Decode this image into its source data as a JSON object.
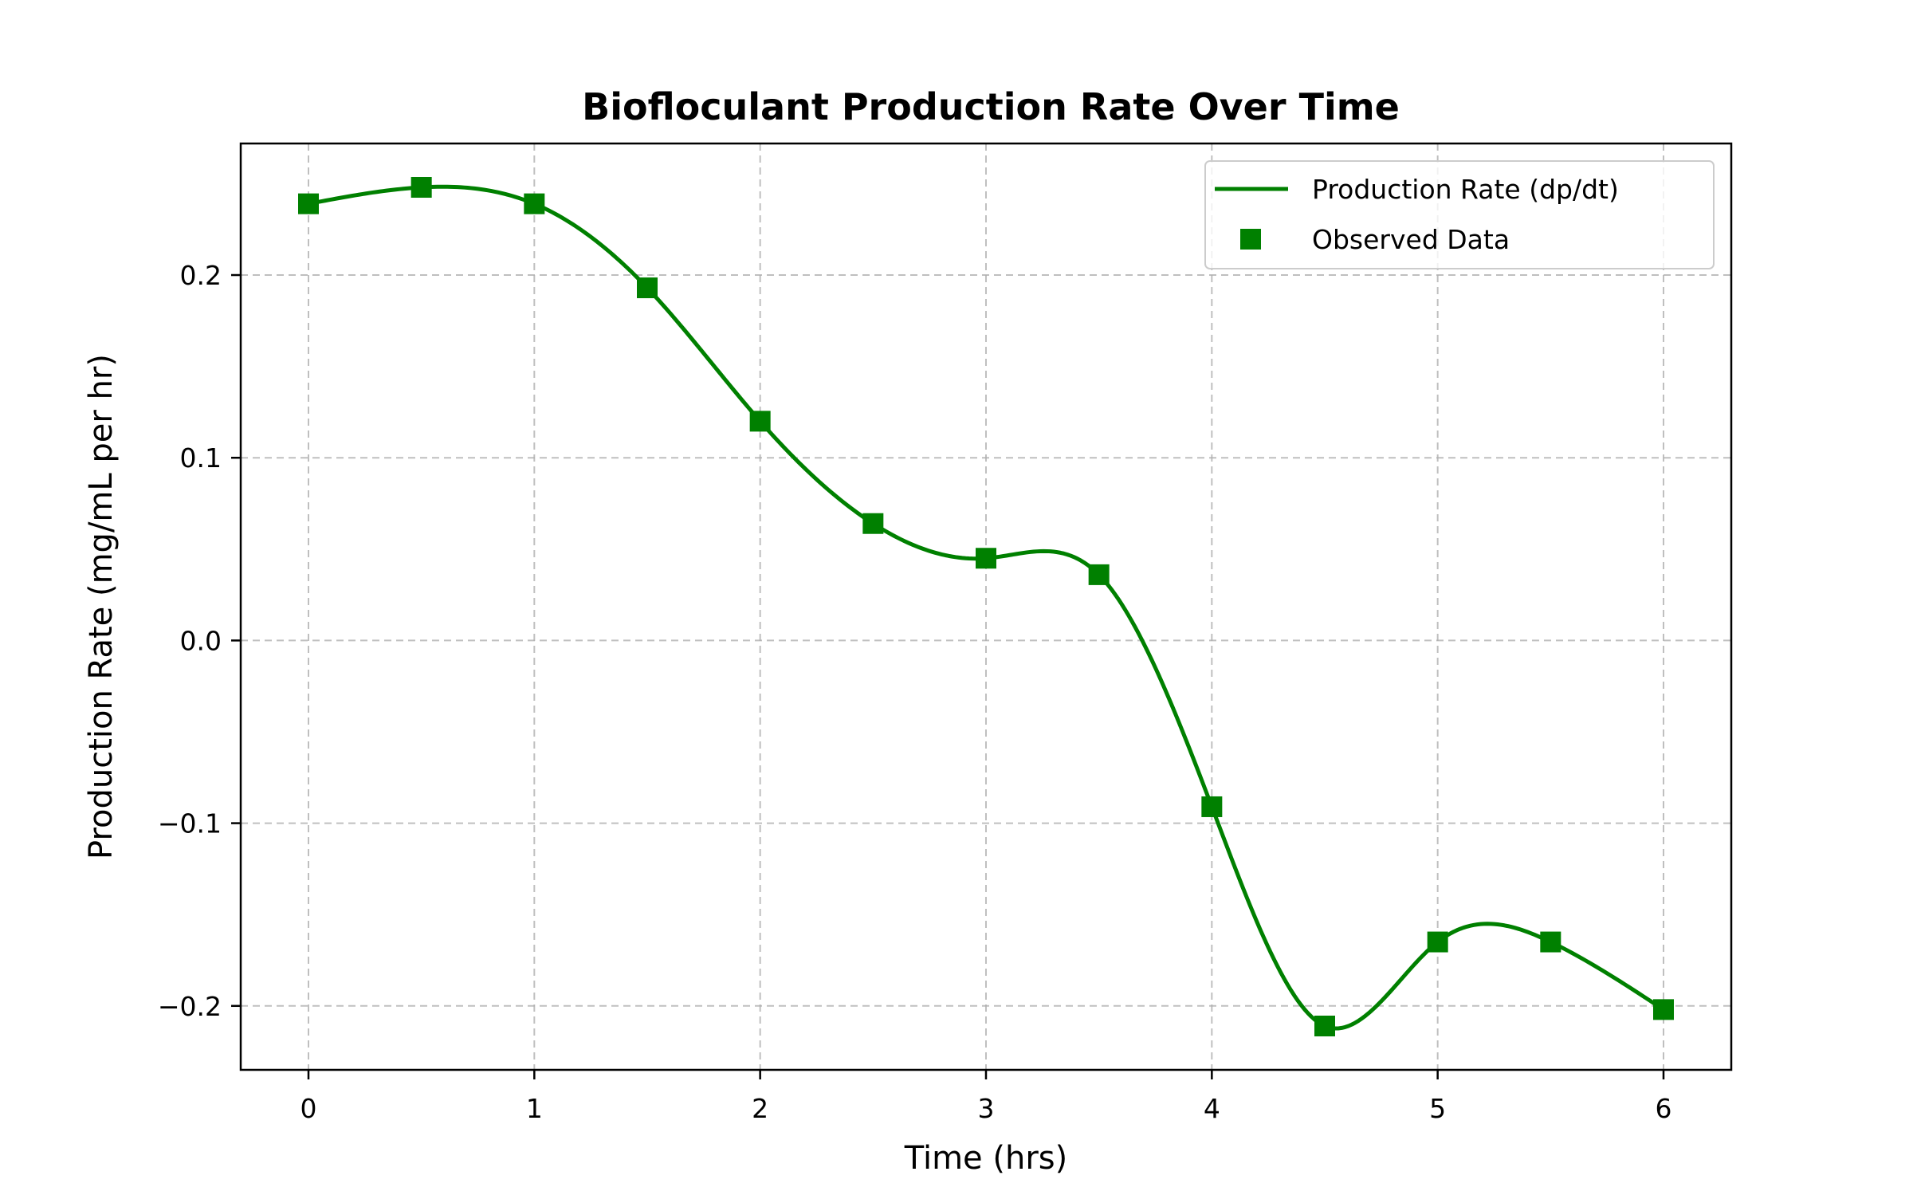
{
  "chart_data": {
    "type": "line",
    "title": "Biofloculant Production Rate Over Time",
    "xlabel": "Time (hrs)",
    "ylabel": "Production Rate (mg/mL per hr)",
    "xlim": [
      -0.3,
      6.3
    ],
    "ylim": [
      -0.235,
      0.272
    ],
    "x_ticks": [
      0,
      1,
      2,
      3,
      4,
      5,
      6
    ],
    "x_tick_labels": [
      "0",
      "1",
      "2",
      "3",
      "4",
      "5",
      "6"
    ],
    "y_ticks": [
      -0.2,
      -0.1,
      0.0,
      0.1,
      0.2
    ],
    "y_tick_labels": [
      "−0.2",
      "−0.1",
      "0.0",
      "0.1",
      "0.2"
    ],
    "grid": true,
    "legend_position": "top-right",
    "color": "#008000",
    "series": [
      {
        "name": "Production Rate (dp/dt)",
        "kind": "line",
        "x": [
          0,
          0.5,
          1,
          1.5,
          2,
          2.5,
          3,
          3.5,
          4,
          4.5,
          5,
          5.5,
          6
        ],
        "y": [
          0.239,
          0.248,
          0.239,
          0.193,
          0.12,
          0.064,
          0.045,
          0.036,
          -0.091,
          -0.211,
          -0.165,
          -0.165,
          -0.202
        ]
      },
      {
        "name": "Observed Data",
        "kind": "scatter",
        "marker": "square",
        "x": [
          0,
          0.5,
          1,
          1.5,
          2,
          2.5,
          3,
          3.5,
          4,
          4.5,
          5,
          5.5,
          6
        ],
        "y": [
          0.239,
          0.248,
          0.239,
          0.193,
          0.12,
          0.064,
          0.045,
          0.036,
          -0.091,
          -0.211,
          -0.165,
          -0.165,
          -0.202
        ]
      }
    ]
  }
}
